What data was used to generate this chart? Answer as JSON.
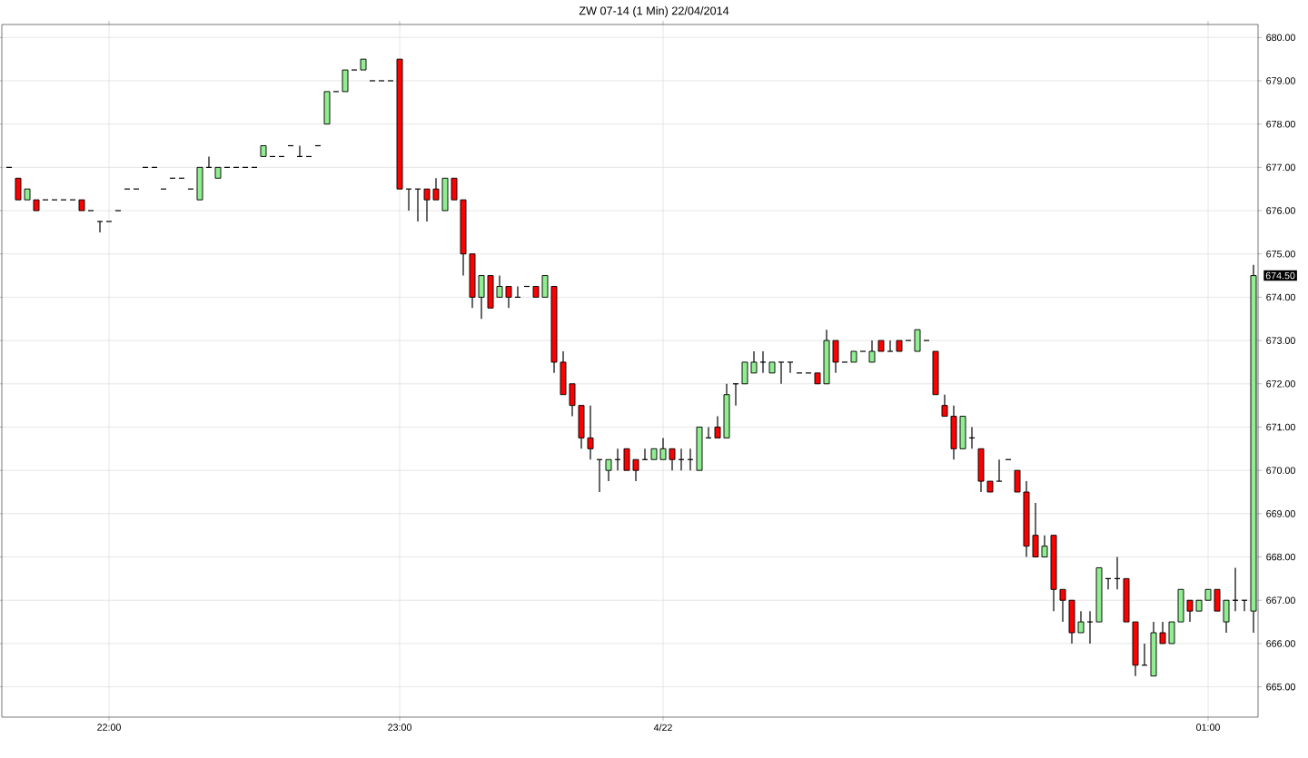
{
  "chart_data": {
    "type": "candlestick",
    "title": "ZW 07-14 (1 Min)  22/04/2014",
    "categories": [
      null,
      null,
      null,
      null,
      null,
      null,
      null,
      null,
      null,
      null,
      null,
      "22:00",
      null,
      null,
      null,
      null,
      null,
      null,
      null,
      null,
      null,
      null,
      null,
      null,
      null,
      null,
      null,
      null,
      null,
      null,
      null,
      null,
      null,
      null,
      null,
      null,
      null,
      null,
      null,
      null,
      null,
      null,
      null,
      "23:00",
      null,
      null,
      null,
      null,
      null,
      null,
      null,
      null,
      null,
      null,
      null,
      null,
      null,
      null,
      null,
      null,
      null,
      null,
      null,
      null,
      null,
      null,
      null,
      null,
      null,
      null,
      null,
      null,
      "4/22",
      null,
      null,
      null,
      null,
      null,
      null,
      null,
      null,
      null,
      null,
      null,
      null,
      null,
      null,
      null,
      null,
      null,
      null,
      null,
      null,
      null,
      null,
      null,
      null,
      null,
      null,
      null,
      null,
      null,
      null,
      null,
      null,
      null,
      null,
      null,
      null,
      null,
      null,
      null,
      null,
      null,
      null,
      null,
      null,
      null,
      null,
      null,
      null,
      null,
      null,
      null,
      null,
      null,
      null,
      null,
      null,
      null,
      null,
      null,
      "01:00",
      null,
      null,
      null,
      null,
      null
    ],
    "ohlc": [
      [
        677,
        677,
        677,
        677
      ],
      [
        676.75,
        676.75,
        676.25,
        676.25
      ],
      [
        676.25,
        676.5,
        676.25,
        676.5
      ],
      [
        676.25,
        676.25,
        676,
        676
      ],
      [
        676.25,
        676.25,
        676.25,
        676.25
      ],
      [
        676.25,
        676.25,
        676.25,
        676.25
      ],
      [
        676.25,
        676.25,
        676.25,
        676.25
      ],
      [
        676.25,
        676.25,
        676.25,
        676.25
      ],
      [
        676.25,
        676.25,
        676,
        676
      ],
      [
        676,
        676,
        676,
        676
      ],
      [
        675.75,
        675.75,
        675.5,
        675.75
      ],
      [
        675.75,
        675.75,
        675.75,
        675.75
      ],
      [
        676,
        676,
        676,
        676
      ],
      [
        676.5,
        676.5,
        676.5,
        676.5
      ],
      [
        676.5,
        676.5,
        676.5,
        676.5
      ],
      [
        677,
        677,
        677,
        677
      ],
      [
        677,
        677,
        677,
        677
      ],
      [
        676.5,
        676.5,
        676.5,
        676.5
      ],
      [
        676.75,
        676.75,
        676.75,
        676.75
      ],
      [
        676.75,
        676.75,
        676.75,
        676.75
      ],
      [
        676.5,
        676.5,
        676.5,
        676.5
      ],
      [
        676.25,
        677,
        676.25,
        677
      ],
      [
        677,
        677.25,
        677,
        677
      ],
      [
        676.75,
        677,
        676.75,
        677
      ],
      [
        677,
        677,
        677,
        677
      ],
      [
        677,
        677,
        677,
        677
      ],
      [
        677,
        677,
        677,
        677
      ],
      [
        677,
        677,
        677,
        677
      ],
      [
        677.25,
        677.5,
        677.25,
        677.5
      ],
      [
        677.25,
        677.25,
        677.25,
        677.25
      ],
      [
        677.25,
        677.25,
        677.25,
        677.25
      ],
      [
        677.5,
        677.5,
        677.5,
        677.5
      ],
      [
        677.25,
        677.5,
        677.25,
        677.25
      ],
      [
        677.25,
        677.25,
        677.25,
        677.25
      ],
      [
        677.5,
        677.5,
        677.5,
        677.5
      ],
      [
        678,
        678.75,
        678,
        678.75
      ],
      [
        678.75,
        678.75,
        678.75,
        678.75
      ],
      [
        678.75,
        679.25,
        678.75,
        679.25
      ],
      [
        679.25,
        679.25,
        679.25,
        679.25
      ],
      [
        679.25,
        679.5,
        679.25,
        679.5
      ],
      [
        679,
        679,
        679,
        679
      ],
      [
        679,
        679,
        679,
        679
      ],
      [
        679,
        679,
        679,
        679
      ],
      [
        679.5,
        679.5,
        676.5,
        676.5
      ],
      [
        676.5,
        676.5,
        676,
        676.5
      ],
      [
        676.5,
        676.5,
        675.75,
        676.5
      ],
      [
        676.5,
        676.5,
        675.75,
        676.25
      ],
      [
        676.5,
        676.75,
        676.25,
        676.25
      ],
      [
        676,
        676.75,
        676,
        676.75
      ],
      [
        676.75,
        676.75,
        676.25,
        676.25
      ],
      [
        676.25,
        676.25,
        674.5,
        675
      ],
      [
        675,
        675,
        673.75,
        674
      ],
      [
        674,
        674.5,
        673.5,
        674.5
      ],
      [
        674.5,
        674.5,
        673.75,
        673.75
      ],
      [
        674,
        674.5,
        674,
        674.25
      ],
      [
        674.25,
        674.25,
        673.75,
        674
      ],
      [
        674,
        674.25,
        674,
        674
      ],
      [
        674.25,
        674.25,
        674.25,
        674.25
      ],
      [
        674.25,
        674.25,
        674,
        674
      ],
      [
        674,
        674.5,
        674,
        674.5
      ],
      [
        674.25,
        674.25,
        672.25,
        672.5
      ],
      [
        672.5,
        672.75,
        671.75,
        671.75
      ],
      [
        672,
        672,
        671.25,
        671.5
      ],
      [
        671.5,
        671.5,
        670.5,
        670.75
      ],
      [
        670.75,
        671.5,
        670.25,
        670.5
      ],
      [
        670.25,
        670.25,
        669.5,
        670.25
      ],
      [
        670,
        670.25,
        669.75,
        670.25
      ],
      [
        670.25,
        670.5,
        670,
        670.25
      ],
      [
        670.5,
        670.5,
        670,
        670
      ],
      [
        670.25,
        670.25,
        669.75,
        670
      ],
      [
        670.25,
        670.5,
        670.25,
        670.25
      ],
      [
        670.25,
        670.5,
        670.25,
        670.5
      ],
      [
        670.25,
        670.75,
        670.25,
        670.5
      ],
      [
        670.5,
        670.5,
        670,
        670.25
      ],
      [
        670.25,
        670.5,
        670,
        670.25
      ],
      [
        670.25,
        670.5,
        670,
        670.25
      ],
      [
        670,
        671,
        670,
        671
      ],
      [
        670.75,
        671,
        670.75,
        670.75
      ],
      [
        671,
        671.25,
        670.75,
        670.75
      ],
      [
        670.75,
        672,
        670.75,
        671.75
      ],
      [
        672,
        672,
        671.5,
        672
      ],
      [
        672,
        672.5,
        672,
        672.5
      ],
      [
        672.25,
        672.75,
        672.25,
        672.5
      ],
      [
        672.5,
        672.75,
        672.25,
        672.5
      ],
      [
        672.25,
        672.5,
        672.25,
        672.5
      ],
      [
        672.5,
        672.5,
        672,
        672.5
      ],
      [
        672.5,
        672.5,
        672.25,
        672.5
      ],
      [
        672.25,
        672.25,
        672.25,
        672.25
      ],
      [
        672.25,
        672.25,
        672.25,
        672.25
      ],
      [
        672.25,
        672.25,
        672,
        672
      ],
      [
        672,
        673.25,
        672,
        673
      ],
      [
        673,
        673,
        672.25,
        672.5
      ],
      [
        672.5,
        672.5,
        672.5,
        672.5
      ],
      [
        672.5,
        672.75,
        672.5,
        672.75
      ],
      [
        672.75,
        672.75,
        672.75,
        672.75
      ],
      [
        672.5,
        673,
        672.5,
        672.75
      ],
      [
        673,
        673,
        672.75,
        672.75
      ],
      [
        672.75,
        673,
        672.75,
        672.75
      ],
      [
        673,
        673,
        672.75,
        672.75
      ],
      [
        673,
        673,
        673,
        673
      ],
      [
        672.75,
        673.25,
        672.75,
        673.25
      ],
      [
        673,
        673,
        673,
        673
      ],
      [
        672.75,
        672.75,
        671.75,
        671.75
      ],
      [
        671.5,
        671.75,
        671.25,
        671.25
      ],
      [
        671.25,
        671.5,
        670.25,
        670.5
      ],
      [
        670.5,
        671.25,
        670.5,
        671.25
      ],
      [
        670.75,
        671,
        670.5,
        670.75
      ],
      [
        670.5,
        670.5,
        669.5,
        669.75
      ],
      [
        669.75,
        669.75,
        669.5,
        669.5
      ],
      [
        669.75,
        670.25,
        669.75,
        669.75
      ],
      [
        670.25,
        670.25,
        670.25,
        670.25
      ],
      [
        670,
        670,
        669.5,
        669.5
      ],
      [
        669.5,
        669.75,
        668,
        668.25
      ],
      [
        668.5,
        669.25,
        668,
        668
      ],
      [
        668,
        668.5,
        668,
        668.25
      ],
      [
        668.5,
        668.5,
        666.75,
        667.25
      ],
      [
        667.25,
        667.25,
        666.5,
        667
      ],
      [
        667,
        667,
        666,
        666.25
      ],
      [
        666.25,
        666.75,
        666.25,
        666.5
      ],
      [
        666.5,
        666.75,
        666,
        666.5
      ],
      [
        666.5,
        667.75,
        666.5,
        667.75
      ],
      [
        667.5,
        667.5,
        667.25,
        667.5
      ],
      [
        667.5,
        668,
        667.25,
        667.5
      ],
      [
        667.5,
        667.5,
        666.5,
        666.5
      ],
      [
        666.5,
        666.5,
        665.25,
        665.5
      ],
      [
        665.5,
        666,
        665.5,
        665.5
      ],
      [
        665.25,
        666.5,
        665.25,
        666.25
      ],
      [
        666.25,
        666.5,
        666,
        666
      ],
      [
        666,
        666.5,
        666,
        666.5
      ],
      [
        666.5,
        667.25,
        666.5,
        667.25
      ],
      [
        667,
        667,
        666.5,
        666.75
      ],
      [
        666.75,
        667,
        666.75,
        667
      ],
      [
        667,
        667.25,
        667,
        667.25
      ],
      [
        667.25,
        667.25,
        666.75,
        666.75
      ],
      [
        666.5,
        667,
        666.25,
        667
      ],
      [
        667,
        667.75,
        666.75,
        667
      ],
      [
        667,
        667,
        666.75,
        667
      ],
      [
        666.75,
        674.75,
        666.25,
        674.5
      ]
    ],
    "colors": [
      "#000000",
      "#ff0000",
      "#90ee90",
      "#ff0000",
      "#000000",
      "#000000",
      "#000000",
      "#000000",
      "#ff0000",
      "#000000",
      "#000000",
      "#000000",
      "#000000",
      "#000000",
      "#000000",
      "#000000",
      "#000000",
      "#000000",
      "#000000",
      "#000000",
      "#000000",
      "#90ee90",
      "#000000",
      "#90ee90",
      "#000000",
      "#000000",
      "#000000",
      "#000000",
      "#90ee90",
      "#000000",
      "#000000",
      "#000000",
      "#000000",
      "#000000",
      "#000000",
      "#90ee90",
      "#000000",
      "#90ee90",
      "#000000",
      "#90ee90",
      "#000000",
      "#000000",
      "#000000",
      "#ff0000",
      "#000000",
      "#000000",
      "#ff0000",
      "#ff0000",
      "#90ee90",
      "#ff0000",
      "#ff0000",
      "#ff0000",
      "#90ee90",
      "#ff0000",
      "#90ee90",
      "#ff0000",
      "#000000",
      "#000000",
      "#ff0000",
      "#90ee90",
      "#ff0000",
      "#ff0000",
      "#ff0000",
      "#ff0000",
      "#ff0000",
      "#000000",
      "#90ee90",
      "#000000",
      "#ff0000",
      "#ff0000",
      "#000000",
      "#90ee90",
      "#90ee90",
      "#ff0000",
      "#000000",
      "#000000",
      "#90ee90",
      "#000000",
      "#ff0000",
      "#90ee90",
      "#000000",
      "#90ee90",
      "#90ee90",
      "#000000",
      "#90ee90",
      "#000000",
      "#000000",
      "#000000",
      "#000000",
      "#ff0000",
      "#90ee90",
      "#ff0000",
      "#000000",
      "#90ee90",
      "#000000",
      "#90ee90",
      "#ff0000",
      "#000000",
      "#ff0000",
      "#000000",
      "#90ee90",
      "#000000",
      "#ff0000",
      "#ff0000",
      "#ff0000",
      "#90ee90",
      "#000000",
      "#ff0000",
      "#ff0000",
      "#000000",
      "#000000",
      "#ff0000",
      "#ff0000",
      "#ff0000",
      "#90ee90",
      "#ff0000",
      "#ff0000",
      "#ff0000",
      "#90ee90",
      "#000000",
      "#90ee90",
      "#000000",
      "#000000",
      "#ff0000",
      "#ff0000",
      "#000000",
      "#90ee90",
      "#ff0000",
      "#90ee90",
      "#90ee90",
      "#ff0000",
      "#90ee90",
      "#90ee90",
      "#ff0000",
      "#90ee90",
      "#000000",
      "#000000",
      "#90ee90"
    ],
    "ylim": [
      664.3,
      680.3
    ],
    "yticks": [
      {
        "value": 665,
        "label": "665.00"
      },
      {
        "value": 666,
        "label": "666.00"
      },
      {
        "value": 667,
        "label": "667.00"
      },
      {
        "value": 668,
        "label": "668.00"
      },
      {
        "value": 669,
        "label": "669.00"
      },
      {
        "value": 670,
        "label": "670.00"
      },
      {
        "value": 671,
        "label": "671.00"
      },
      {
        "value": 672,
        "label": "672.00"
      },
      {
        "value": 673,
        "label": "673.00"
      },
      {
        "value": 674,
        "label": "674.00"
      },
      {
        "value": 675,
        "label": "675.00"
      },
      {
        "value": 676,
        "label": "676.00"
      },
      {
        "value": 677,
        "label": "677.00"
      },
      {
        "value": 678,
        "label": "678.00"
      },
      {
        "value": 679,
        "label": "679.00"
      },
      {
        "value": 680,
        "label": "680.00"
      }
    ],
    "grid": true,
    "annotations": [
      "674.50"
    ]
  }
}
